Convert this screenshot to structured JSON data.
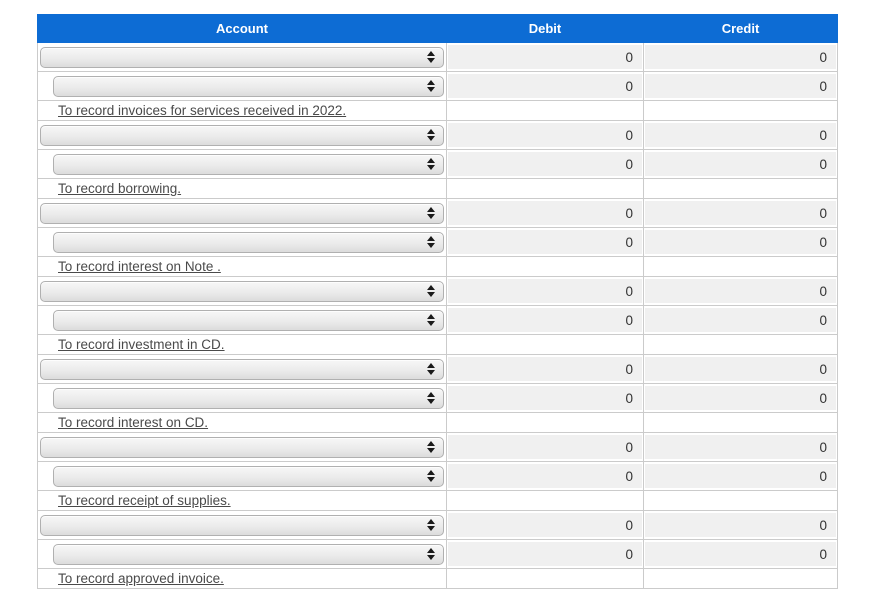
{
  "header": {
    "columns": [
      "Account",
      "Debit",
      "Credit"
    ]
  },
  "colors": {
    "header_bg": "#0d6cd4",
    "header_text": "#ffffff",
    "input_bg": "#f0f0f0",
    "cell_border": "#cbcbcb"
  },
  "entries": [
    {
      "description": "To record invoices for services received in 2022.",
      "debit_row": {
        "account": "",
        "debit": "0",
        "credit": "0"
      },
      "credit_row": {
        "account": "",
        "debit": "0",
        "credit": "0"
      }
    },
    {
      "description": "To record borrowing.",
      "debit_row": {
        "account": "",
        "debit": "0",
        "credit": "0"
      },
      "credit_row": {
        "account": "",
        "debit": "0",
        "credit": "0"
      }
    },
    {
      "description": "To record interest on Note .",
      "debit_row": {
        "account": "",
        "debit": "0",
        "credit": "0"
      },
      "credit_row": {
        "account": "",
        "debit": "0",
        "credit": "0"
      }
    },
    {
      "description": "To record investment in CD.",
      "debit_row": {
        "account": "",
        "debit": "0",
        "credit": "0"
      },
      "credit_row": {
        "account": "",
        "debit": "0",
        "credit": "0"
      }
    },
    {
      "description": "To record interest on CD.",
      "debit_row": {
        "account": "",
        "debit": "0",
        "credit": "0"
      },
      "credit_row": {
        "account": "",
        "debit": "0",
        "credit": "0"
      }
    },
    {
      "description": "To record receipt of supplies.",
      "debit_row": {
        "account": "",
        "debit": "0",
        "credit": "0"
      },
      "credit_row": {
        "account": "",
        "debit": "0",
        "credit": "0"
      }
    },
    {
      "description": "To record approved invoice.",
      "debit_row": {
        "account": "",
        "debit": "0",
        "credit": "0"
      },
      "credit_row": {
        "account": "",
        "debit": "0",
        "credit": "0"
      }
    }
  ]
}
